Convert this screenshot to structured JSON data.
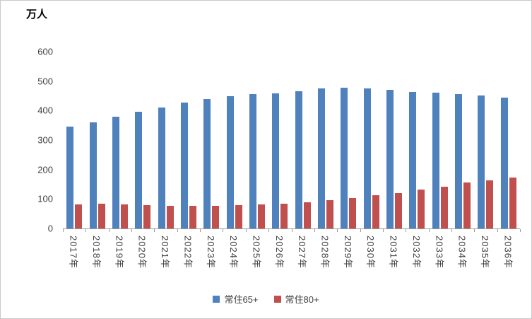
{
  "chart": {
    "unit_label": "万人"
  },
  "chart_data": {
    "type": "bar",
    "title": "",
    "ylabel_unit": "万人",
    "xlabel": "",
    "grid": false,
    "legend_position": "bottom",
    "ylim": [
      0,
      600
    ],
    "yticks": [
      0,
      100,
      200,
      300,
      400,
      500,
      600
    ],
    "categories": [
      "2017年",
      "2018年",
      "2019年",
      "2020年",
      "2021年",
      "2022年",
      "2023年",
      "2024年",
      "2025年",
      "2026年",
      "2027年",
      "2028年",
      "2029年",
      "2030年",
      "2031年",
      "2032年",
      "2033年",
      "2034年",
      "2035年",
      "2036年"
    ],
    "series": [
      {
        "name": "常住65+",
        "color": "#4F81BD",
        "values": [
          345,
          360,
          380,
          395,
          410,
          428,
          440,
          448,
          457,
          458,
          465,
          475,
          477,
          476,
          471,
          463,
          460,
          456,
          451,
          444
        ]
      },
      {
        "name": "常住80+",
        "color": "#C0504D",
        "values": [
          82,
          83,
          81,
          79,
          78,
          78,
          78,
          79,
          81,
          84,
          90,
          96,
          104,
          112,
          121,
          131,
          141,
          155,
          164,
          172
        ]
      }
    ]
  }
}
